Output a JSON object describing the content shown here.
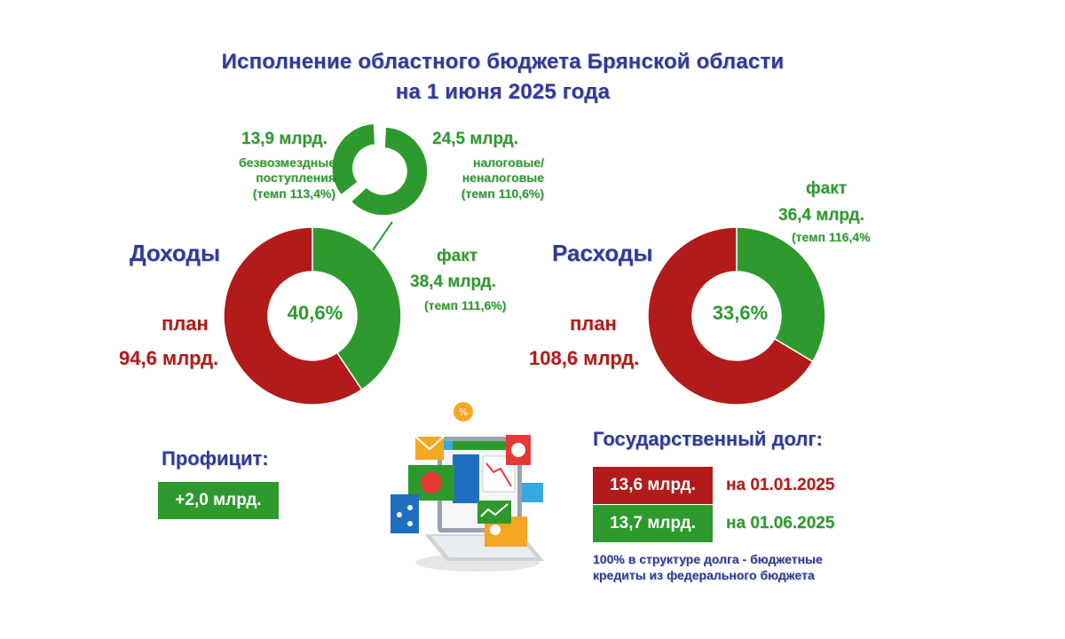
{
  "title": {
    "line1": "Исполнение областного бюджета Брянской области",
    "line2": "на 1 июня 2025 года"
  },
  "colors": {
    "plan": "#b31b1b",
    "fact": "#2e9a2e",
    "heading": "#2f3a99"
  },
  "income": {
    "heading": "Доходы",
    "center_label": "40,6%",
    "plan_label": "план",
    "plan_value": "94,6 млрд.",
    "fact_label": "факт",
    "fact_value": "38,4 млрд.",
    "fact_rate": "(темп 111,6%)",
    "breakdown": {
      "grants_value": "13,9 млрд.",
      "grants_line1": "безвозмездные",
      "grants_line2": "поступления",
      "grants_rate": "(темп 113,4%)",
      "tax_value": "24,5 млрд.",
      "tax_line1": "налоговые/",
      "tax_line2": "неналоговые",
      "tax_rate": "(темп 110,6%)"
    }
  },
  "expenses": {
    "heading": "Расходы",
    "center_label": "33,6%",
    "plan_label": "план",
    "plan_value": "108,6 млрд.",
    "fact_label": "факт",
    "fact_value": "36,4 млрд.",
    "fact_rate": "(темп 116,4%"
  },
  "surplus": {
    "label": "Профицит:",
    "value": "+2,0 млрд."
  },
  "debt": {
    "heading": "Государственный долг:",
    "rows": [
      {
        "value": "13,6 млрд.",
        "date": "на 01.01.2025"
      },
      {
        "value": "13,7 млрд.",
        "date": "на 01.06.2025"
      }
    ],
    "note_line1": "100% в структуре долга - бюджетные",
    "note_line2": "кредиты из федерального бюджета"
  },
  "chart_data": [
    {
      "type": "pie",
      "categories": [
        "факт",
        "план"
      ],
      "values": [
        40.6,
        59.4
      ],
      "unit": "%"
    },
    {
      "type": "pie",
      "categories": [
        "налоговые/неналоговые",
        "безвозмездные поступления"
      ],
      "values": [
        24.5,
        13.9
      ],
      "unit": "млрд."
    },
    {
      "type": "pie",
      "categories": [
        "факт",
        "план"
      ],
      "values": [
        33.6,
        66.4
      ],
      "unit": "%"
    }
  ]
}
